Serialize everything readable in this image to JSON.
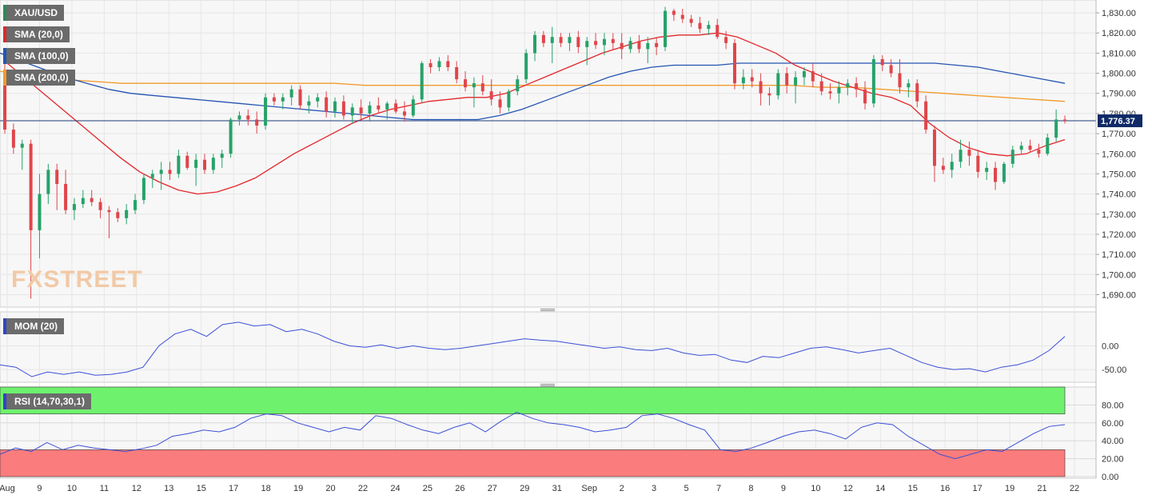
{
  "colors": {
    "bull": "#26a269",
    "bear": "#e0454a",
    "sma20": "#e3262b",
    "sma100": "#2454b2",
    "sma200": "#f29a2e",
    "mom": "#3b4fd6",
    "rsi": "#3b4fd6",
    "overbought_zone": "#6ef26e",
    "oversold_zone": "#fa7c7c",
    "current_line": "#1d3b78",
    "grid": "#e6e6e6"
  },
  "main_panel": {
    "symbol": "XAU/USD",
    "indicators": [
      "SMA (20,0)",
      "SMA (100,0)",
      "SMA (200,0)"
    ],
    "indicator_colors": [
      "#e3262b",
      "#2454b2",
      "#f29a2e"
    ],
    "current_price_label": "1,776.37",
    "y_ticks": [
      "1,830.00",
      "1,820.00",
      "1,810.00",
      "1,800.00",
      "1,790.00",
      "1,780.00",
      "1,770.00",
      "1,760.00",
      "1,750.00",
      "1,740.00",
      "1,730.00",
      "1,720.00",
      "1,710.00",
      "1,700.00",
      "1,690.00"
    ],
    "watermark": "FXSTREET"
  },
  "mom_panel": {
    "label": "MOM (20)",
    "y_ticks": [
      "0.00",
      "-50.00"
    ]
  },
  "rsi_panel": {
    "label": "RSI (14,70,30,1)",
    "y_ticks": [
      "80.00",
      "60.00",
      "40.00",
      "20.00",
      "0.00"
    ],
    "overbought": 70,
    "oversold": 30
  },
  "x_axis": {
    "labels": [
      "Aug",
      "9",
      "10",
      "11",
      "12",
      "13",
      "15",
      "17",
      "18",
      "19",
      "20",
      "22",
      "24",
      "25",
      "26",
      "27",
      "29",
      "31",
      "Sep",
      "2",
      "3",
      "5",
      "7",
      "8",
      "9",
      "10",
      "12",
      "14",
      "15",
      "16",
      "17",
      "19",
      "21",
      "22"
    ]
  },
  "chart_data": {
    "type": "candlestick",
    "symbol": "XAU/USD",
    "ylim": [
      1687,
      1834
    ],
    "candles": [
      [
        1795,
        1806,
        1770,
        1772
      ],
      [
        1772,
        1775,
        1760,
        1763
      ],
      [
        1763,
        1767,
        1752,
        1765
      ],
      [
        1765,
        1767,
        1688,
        1722
      ],
      [
        1722,
        1750,
        1708,
        1740
      ],
      [
        1740,
        1755,
        1735,
        1752
      ],
      [
        1752,
        1755,
        1732,
        1745
      ],
      [
        1745,
        1752,
        1730,
        1732
      ],
      [
        1732,
        1738,
        1727,
        1735
      ],
      [
        1735,
        1742,
        1733,
        1738
      ],
      [
        1738,
        1742,
        1734,
        1736
      ],
      [
        1736,
        1738,
        1728,
        1732
      ],
      [
        1732,
        1734,
        1718,
        1731
      ],
      [
        1731,
        1733,
        1726,
        1728
      ],
      [
        1728,
        1735,
        1725,
        1732
      ],
      [
        1732,
        1740,
        1730,
        1737
      ],
      [
        1737,
        1750,
        1735,
        1748
      ],
      [
        1748,
        1752,
        1743,
        1750
      ],
      [
        1750,
        1756,
        1742,
        1752
      ],
      [
        1752,
        1756,
        1747,
        1750
      ],
      [
        1750,
        1762,
        1748,
        1759
      ],
      [
        1759,
        1761,
        1752,
        1753
      ],
      [
        1753,
        1760,
        1744,
        1757
      ],
      [
        1757,
        1760,
        1750,
        1752
      ],
      [
        1752,
        1760,
        1750,
        1758
      ],
      [
        1758,
        1762,
        1753,
        1760
      ],
      [
        1760,
        1778,
        1758,
        1777
      ],
      [
        1777,
        1781,
        1774,
        1779
      ],
      [
        1779,
        1782,
        1774,
        1777
      ],
      [
        1777,
        1781,
        1770,
        1774
      ],
      [
        1774,
        1790,
        1772,
        1788
      ],
      [
        1788,
        1790,
        1784,
        1786
      ],
      [
        1786,
        1790,
        1782,
        1788
      ],
      [
        1788,
        1794,
        1784,
        1792
      ],
      [
        1792,
        1794,
        1782,
        1784
      ],
      [
        1784,
        1789,
        1780,
        1786
      ],
      [
        1786,
        1790,
        1783,
        1788
      ],
      [
        1788,
        1791,
        1778,
        1781
      ],
      [
        1781,
        1788,
        1778,
        1786
      ],
      [
        1786,
        1789,
        1777,
        1779
      ],
      [
        1779,
        1785,
        1775,
        1783
      ],
      [
        1783,
        1787,
        1777,
        1780
      ],
      [
        1780,
        1786,
        1776,
        1784
      ],
      [
        1784,
        1788,
        1780,
        1782
      ],
      [
        1782,
        1786,
        1777,
        1785
      ],
      [
        1785,
        1787,
        1780,
        1781
      ],
      [
        1781,
        1786,
        1776,
        1779
      ],
      [
        1779,
        1789,
        1778,
        1787
      ],
      [
        1787,
        1806,
        1785,
        1805
      ],
      [
        1805,
        1807,
        1800,
        1803
      ],
      [
        1803,
        1808,
        1801,
        1806
      ],
      [
        1806,
        1809,
        1801,
        1803
      ],
      [
        1803,
        1806,
        1795,
        1797
      ],
      [
        1797,
        1801,
        1791,
        1793
      ],
      [
        1793,
        1798,
        1783,
        1795
      ],
      [
        1795,
        1799,
        1789,
        1791
      ],
      [
        1791,
        1797,
        1784,
        1787
      ],
      [
        1787,
        1791,
        1780,
        1783
      ],
      [
        1783,
        1792,
        1781,
        1791
      ],
      [
        1791,
        1799,
        1789,
        1797
      ],
      [
        1797,
        1812,
        1795,
        1810
      ],
      [
        1810,
        1821,
        1806,
        1819
      ],
      [
        1819,
        1821,
        1813,
        1815
      ],
      [
        1815,
        1823,
        1805,
        1818
      ],
      [
        1818,
        1820,
        1813,
        1815
      ],
      [
        1815,
        1820,
        1811,
        1818
      ],
      [
        1818,
        1821,
        1810,
        1813
      ],
      [
        1813,
        1818,
        1804,
        1816
      ],
      [
        1816,
        1820,
        1812,
        1814
      ],
      [
        1814,
        1820,
        1809,
        1817
      ],
      [
        1817,
        1820,
        1812,
        1815
      ],
      [
        1815,
        1820,
        1807,
        1812
      ],
      [
        1812,
        1818,
        1810,
        1816
      ],
      [
        1816,
        1819,
        1810,
        1812
      ],
      [
        1812,
        1818,
        1805,
        1815
      ],
      [
        1815,
        1818,
        1809,
        1813
      ],
      [
        1813,
        1833,
        1811,
        1831
      ],
      [
        1831,
        1832,
        1826,
        1829
      ],
      [
        1829,
        1832,
        1825,
        1827
      ],
      [
        1827,
        1829,
        1823,
        1825
      ],
      [
        1825,
        1828,
        1820,
        1822
      ],
      [
        1822,
        1826,
        1819,
        1824
      ],
      [
        1824,
        1827,
        1817,
        1818
      ],
      [
        1818,
        1821,
        1812,
        1815
      ],
      [
        1815,
        1817,
        1792,
        1795
      ],
      [
        1795,
        1802,
        1792,
        1798
      ],
      [
        1798,
        1802,
        1793,
        1796
      ],
      [
        1796,
        1800,
        1784,
        1790
      ],
      [
        1790,
        1793,
        1784,
        1789
      ],
      [
        1789,
        1802,
        1787,
        1800
      ],
      [
        1800,
        1803,
        1790,
        1794
      ],
      [
        1794,
        1801,
        1785,
        1798
      ],
      [
        1798,
        1803,
        1794,
        1801
      ],
      [
        1801,
        1805,
        1793,
        1796
      ],
      [
        1796,
        1800,
        1789,
        1791
      ],
      [
        1791,
        1795,
        1787,
        1790
      ],
      [
        1790,
        1796,
        1785,
        1793
      ],
      [
        1793,
        1797,
        1789,
        1795
      ],
      [
        1795,
        1798,
        1788,
        1792
      ],
      [
        1792,
        1796,
        1782,
        1785
      ],
      [
        1785,
        1809,
        1783,
        1807
      ],
      [
        1807,
        1809,
        1801,
        1804
      ],
      [
        1804,
        1807,
        1798,
        1800
      ],
      [
        1800,
        1807,
        1790,
        1793
      ],
      [
        1793,
        1797,
        1788,
        1795
      ],
      [
        1795,
        1797,
        1783,
        1786
      ],
      [
        1786,
        1789,
        1770,
        1772
      ],
      [
        1772,
        1774,
        1746,
        1754
      ],
      [
        1754,
        1758,
        1750,
        1752
      ],
      [
        1752,
        1760,
        1748,
        1756
      ],
      [
        1756,
        1767,
        1753,
        1762
      ],
      [
        1762,
        1766,
        1754,
        1759
      ],
      [
        1759,
        1762,
        1748,
        1751
      ],
      [
        1751,
        1756,
        1747,
        1753
      ],
      [
        1753,
        1756,
        1742,
        1746
      ],
      [
        1746,
        1756,
        1745,
        1755
      ],
      [
        1755,
        1764,
        1753,
        1762
      ],
      [
        1762,
        1766,
        1760,
        1764
      ],
      [
        1764,
        1767,
        1761,
        1762
      ],
      [
        1762,
        1765,
        1758,
        1760
      ],
      [
        1760,
        1770,
        1759,
        1768
      ],
      [
        1768,
        1782,
        1766,
        1777
      ],
      [
        1777,
        1779,
        1775,
        1776.37
      ]
    ],
    "sma20": [
      1806,
      1798,
      1790,
      1782,
      1774,
      1766,
      1758,
      1751,
      1746,
      1742,
      1740,
      1741,
      1744,
      1748,
      1754,
      1760,
      1765,
      1770,
      1775,
      1779,
      1782,
      1784,
      1786,
      1787,
      1788,
      1788,
      1790,
      1794,
      1798,
      1802,
      1806,
      1810,
      1813,
      1816,
      1818,
      1819,
      1819,
      1820,
      1818,
      1814,
      1810,
      1804,
      1800,
      1796,
      1793,
      1790,
      1788,
      1784,
      1775,
      1768,
      1763,
      1760,
      1759,
      1760,
      1764,
      1767
    ],
    "sma100": [
      1810,
      1806,
      1802,
      1798,
      1795,
      1792,
      1790,
      1789,
      1788,
      1787,
      1786,
      1785,
      1784,
      1783,
      1782,
      1781,
      1780,
      1779,
      1778,
      1777,
      1777,
      1777,
      1777,
      1779,
      1782,
      1786,
      1790,
      1794,
      1798,
      1801,
      1803,
      1804,
      1804,
      1804,
      1805,
      1805,
      1805,
      1805,
      1805,
      1805,
      1805,
      1805,
      1805,
      1805,
      1804,
      1803,
      1801,
      1799,
      1797,
      1795
    ],
    "sma200": [
      1801,
      1799,
      1797,
      1796,
      1795,
      1795,
      1795,
      1795,
      1795,
      1795,
      1795,
      1795,
      1794,
      1794,
      1794,
      1794,
      1794,
      1794,
      1794,
      1794,
      1794,
      1794,
      1794,
      1794,
      1794,
      1794,
      1794,
      1793,
      1793,
      1792,
      1791,
      1790,
      1789,
      1788,
      1787,
      1786
    ],
    "momentum": [
      -40,
      -45,
      -65,
      -55,
      -60,
      -55,
      -62,
      -60,
      -55,
      -45,
      0,
      25,
      35,
      20,
      45,
      50,
      42,
      45,
      30,
      35,
      25,
      10,
      0,
      -3,
      2,
      -5,
      0,
      -5,
      -8,
      -5,
      0,
      5,
      10,
      15,
      12,
      10,
      5,
      0,
      -5,
      -2,
      -8,
      -10,
      -5,
      -15,
      -20,
      -18,
      -30,
      -35,
      -22,
      -25,
      -15,
      -5,
      -2,
      -8,
      -15,
      -10,
      -5,
      -20,
      -35,
      -45,
      -50,
      -48,
      -55,
      -45,
      -40,
      -30,
      -10,
      20
    ],
    "rsi": [
      25,
      32,
      28,
      38,
      30,
      35,
      32,
      30,
      28,
      31,
      35,
      45,
      48,
      52,
      50,
      55,
      65,
      70,
      68,
      60,
      55,
      50,
      55,
      52,
      68,
      65,
      58,
      52,
      48,
      55,
      60,
      50,
      62,
      72,
      65,
      60,
      58,
      55,
      50,
      52,
      55,
      68,
      70,
      65,
      58,
      52,
      30,
      28,
      32,
      38,
      45,
      50,
      52,
      48,
      42,
      55,
      60,
      58,
      45,
      35,
      25,
      20,
      25,
      30,
      28,
      38,
      48,
      56,
      58
    ]
  }
}
